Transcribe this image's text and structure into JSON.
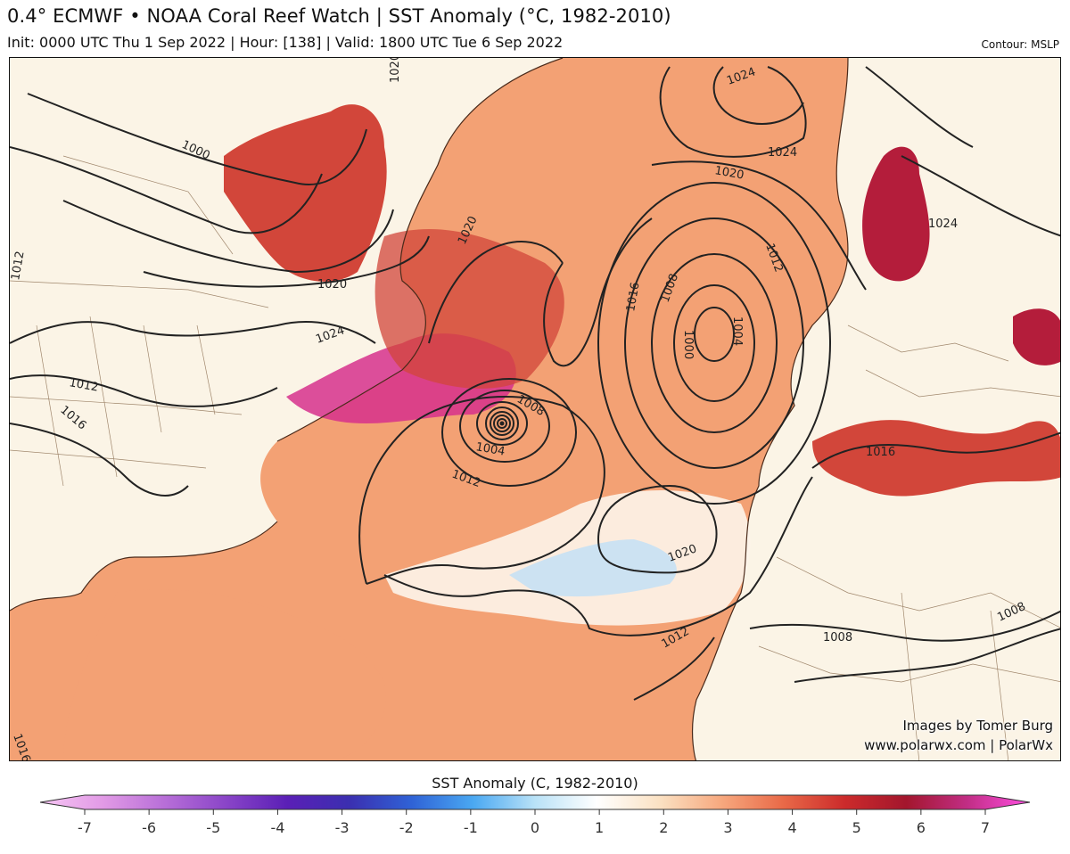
{
  "header": {
    "title": "0.4° ECMWF • NOAA Coral Reef Watch | SST Anomaly (°C, 1982-2010)",
    "subtitle": "Init: 0000 UTC Thu 1 Sep 2022 | Hour: [138] | Valid: 1800 UTC Tue 6 Sep 2022",
    "contour_label": "Contour: MSLP"
  },
  "credits": {
    "line1": "Images by Tomer Burg",
    "line2": "www.polarwx.com | PolarWx"
  },
  "isobar_labels": [
    {
      "id": "l1000a",
      "text": "1000"
    },
    {
      "id": "l1020a",
      "text": "1020"
    },
    {
      "id": "l1024a",
      "text": "1024"
    },
    {
      "id": "l1012a",
      "text": "1012"
    },
    {
      "id": "l1016a",
      "text": "1016"
    },
    {
      "id": "l1020b",
      "text": "1020"
    },
    {
      "id": "l1020c",
      "text": "1020"
    },
    {
      "id": "l1024b",
      "text": "1024"
    },
    {
      "id": "l1024c",
      "text": "1024"
    },
    {
      "id": "l1020d",
      "text": "1020"
    },
    {
      "id": "l1016b",
      "text": "1016"
    },
    {
      "id": "l1008a",
      "text": "1008"
    },
    {
      "id": "l1000b",
      "text": "1000"
    },
    {
      "id": "l1004a",
      "text": "1004"
    },
    {
      "id": "l1012b",
      "text": "1012"
    },
    {
      "id": "l1008b",
      "text": "1008"
    },
    {
      "id": "l1004b",
      "text": "1004"
    },
    {
      "id": "l1012c",
      "text": "1012"
    },
    {
      "id": "l1020e",
      "text": "1020"
    },
    {
      "id": "l1012d",
      "text": "1012"
    },
    {
      "id": "l1016c",
      "text": "1016"
    },
    {
      "id": "l1008c",
      "text": "1008"
    },
    {
      "id": "l1008d",
      "text": "1008"
    },
    {
      "id": "l1024d",
      "text": "1024"
    },
    {
      "id": "l1016d",
      "text": "1016"
    },
    {
      "id": "l1012e",
      "text": "1012"
    }
  ],
  "colorbar": {
    "title": "SST Anomaly (C, 1982-2010)",
    "min": -7,
    "max": 7,
    "ticks": [
      "-7",
      "-6",
      "-5",
      "-4",
      "-3",
      "-2",
      "-1",
      "0",
      "1",
      "2",
      "3",
      "4",
      "5",
      "6",
      "7"
    ],
    "colors": [
      "#f7c6f4",
      "#e29be6",
      "#b86fd8",
      "#8a45c8",
      "#5a1fb6",
      "#3b2fb0",
      "#2f62d6",
      "#4aa8f2",
      "#b9e2f7",
      "#ffffff",
      "#fbe2c4",
      "#f7a97f",
      "#e96a48",
      "#cc2b2b",
      "#a3162d",
      "#c22e86",
      "#ff4fe3"
    ]
  },
  "colors": {
    "land": "#fbf4e6",
    "ocean_warm": "#f3a174",
    "ocean_hot": "#d2463a",
    "ocean_very_hot": "#b41d3b",
    "ocean_extreme": "#d6308c",
    "ocean_neutral": "#fdf4ea",
    "ocean_cool": "#bfe0f6",
    "contour": "#222222"
  }
}
